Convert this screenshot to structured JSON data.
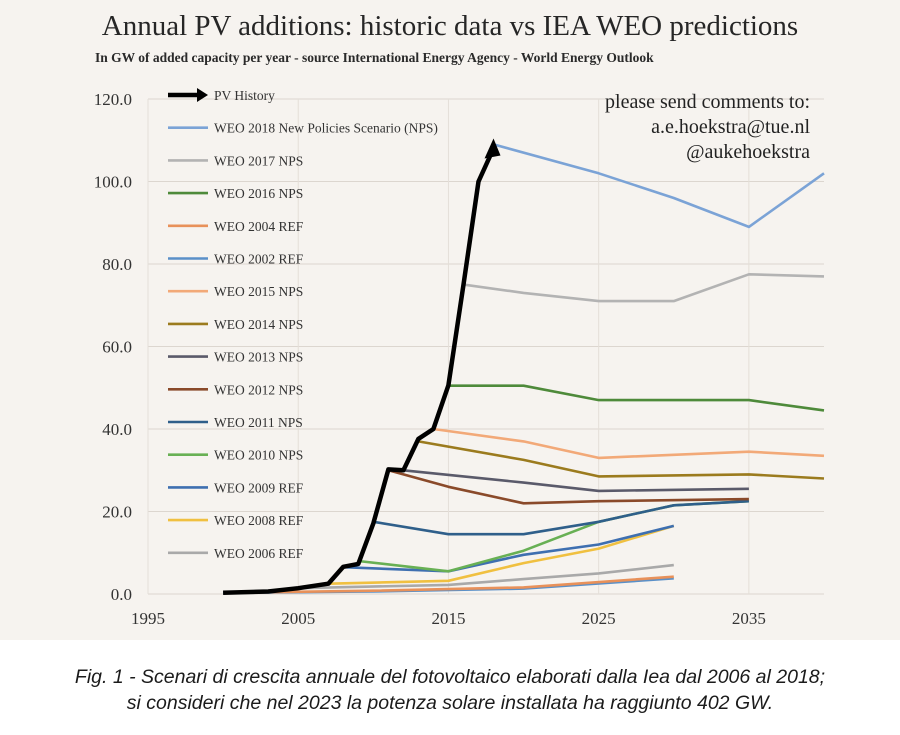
{
  "chart_data": {
    "type": "line",
    "title": "Annual PV additions: historic data vs IEA WEO predictions",
    "subtitle": "In GW of added capacity per year - source International Energy Agency - World Energy Outlook",
    "xlim": [
      1995,
      2040
    ],
    "ylim": [
      0,
      120
    ],
    "x_ticks": [
      "1995",
      "2005",
      "2015",
      "2025",
      "2035"
    ],
    "y_ticks": [
      "0.0",
      "20.0",
      "40.0",
      "60.0",
      "80.0",
      "100.0",
      "120.0"
    ],
    "grid": true,
    "legend_position": "top-left",
    "series": [
      {
        "name": "PV History",
        "color": "#000000",
        "points": [
          [
            2000,
            0.3
          ],
          [
            2003,
            0.6
          ],
          [
            2005,
            1.4
          ],
          [
            2007,
            2.5
          ],
          [
            2008,
            6.6
          ],
          [
            2009,
            7.3
          ],
          [
            2010,
            17.1
          ],
          [
            2011,
            30.2
          ],
          [
            2012,
            30.0
          ],
          [
            2013,
            37.6
          ],
          [
            2014,
            40.0
          ],
          [
            2015,
            50.6
          ],
          [
            2016,
            75.0
          ],
          [
            2017,
            100.0
          ],
          [
            2018,
            108.0
          ]
        ]
      },
      {
        "name": "WEO 2018 New Policies Scenario (NPS)",
        "color": "#7ba3d6",
        "points": [
          [
            2018,
            109
          ],
          [
            2025,
            102
          ],
          [
            2030,
            96
          ],
          [
            2035,
            89
          ],
          [
            2040,
            102
          ]
        ]
      },
      {
        "name": "WEO 2017 NPS",
        "color": "#b3b3b3",
        "points": [
          [
            2016,
            75
          ],
          [
            2020,
            73
          ],
          [
            2025,
            71
          ],
          [
            2030,
            71
          ],
          [
            2035,
            77.5
          ],
          [
            2040,
            77
          ]
        ]
      },
      {
        "name": "WEO 2016 NPS",
        "color": "#4e8a3a",
        "points": [
          [
            2015,
            50.5
          ],
          [
            2020,
            50.5
          ],
          [
            2025,
            47
          ],
          [
            2035,
            47
          ],
          [
            2040,
            44.5
          ]
        ]
      },
      {
        "name": "WEO 2004 REF",
        "color": "#e8915a",
        "points": [
          [
            2002,
            0.4
          ],
          [
            2010,
            0.8
          ],
          [
            2020,
            1.6
          ],
          [
            2030,
            4.2
          ]
        ]
      },
      {
        "name": "WEO 2002 REF",
        "color": "#5a90c8",
        "points": [
          [
            2000,
            0.3
          ],
          [
            2010,
            0.6
          ],
          [
            2020,
            1.3
          ],
          [
            2030,
            3.8
          ]
        ]
      },
      {
        "name": "WEO 2015 NPS",
        "color": "#f2a978",
        "points": [
          [
            2014,
            40
          ],
          [
            2020,
            37
          ],
          [
            2025,
            33
          ],
          [
            2035,
            34.5
          ],
          [
            2040,
            33.5
          ]
        ]
      },
      {
        "name": "WEO 2014 NPS",
        "color": "#9b7b1e",
        "points": [
          [
            2013,
            37
          ],
          [
            2020,
            32.5
          ],
          [
            2025,
            28.5
          ],
          [
            2035,
            29
          ],
          [
            2040,
            28
          ]
        ]
      },
      {
        "name": "WEO 2013 NPS",
        "color": "#5a5a6a",
        "points": [
          [
            2012,
            30
          ],
          [
            2020,
            27
          ],
          [
            2025,
            25
          ],
          [
            2035,
            25.5
          ]
        ]
      },
      {
        "name": "WEO 2012 NPS",
        "color": "#8a4a2a",
        "points": [
          [
            2011,
            30
          ],
          [
            2015,
            26
          ],
          [
            2020,
            22
          ],
          [
            2025,
            22.5
          ],
          [
            2035,
            23
          ]
        ]
      },
      {
        "name": "WEO 2011 NPS",
        "color": "#2f5f8a",
        "points": [
          [
            2010,
            17.5
          ],
          [
            2015,
            14.5
          ],
          [
            2020,
            14.5
          ],
          [
            2025,
            17.5
          ],
          [
            2030,
            21.5
          ],
          [
            2035,
            22.5
          ]
        ]
      },
      {
        "name": "WEO 2010 NPS",
        "color": "#68b054",
        "points": [
          [
            2009,
            8
          ],
          [
            2015,
            5.5
          ],
          [
            2020,
            10.5
          ],
          [
            2025,
            17.5
          ],
          [
            2030,
            21.5
          ],
          [
            2035,
            22.5
          ]
        ]
      },
      {
        "name": "WEO 2009 REF",
        "color": "#3e6fb0",
        "points": [
          [
            2008,
            6.5
          ],
          [
            2015,
            5.5
          ],
          [
            2020,
            9.5
          ],
          [
            2025,
            12
          ],
          [
            2030,
            16.5
          ]
        ]
      },
      {
        "name": "WEO 2008 REF",
        "color": "#f0c040",
        "points": [
          [
            2007,
            2.5
          ],
          [
            2015,
            3.2
          ],
          [
            2020,
            7.5
          ],
          [
            2025,
            11
          ],
          [
            2030,
            16.5
          ]
        ]
      },
      {
        "name": "WEO 2006 REF",
        "color": "#a9a9a9",
        "points": [
          [
            2005,
            1.4
          ],
          [
            2015,
            2.2
          ],
          [
            2020,
            3.6
          ],
          [
            2025,
            5
          ],
          [
            2030,
            7
          ]
        ]
      }
    ]
  },
  "contact": {
    "line1": "please send comments to:",
    "line2": "a.e.hoekstra@tue.nl",
    "line3": "@aukehoekstra"
  },
  "caption": {
    "line1": "Fig. 1 - Scenari di crescita annuale del fotovoltaico elaborati dalla Iea dal 2006 al 2018;",
    "line2": "si consideri che nel 2023 la potenza solare installata ha raggiunto 402 GW."
  }
}
